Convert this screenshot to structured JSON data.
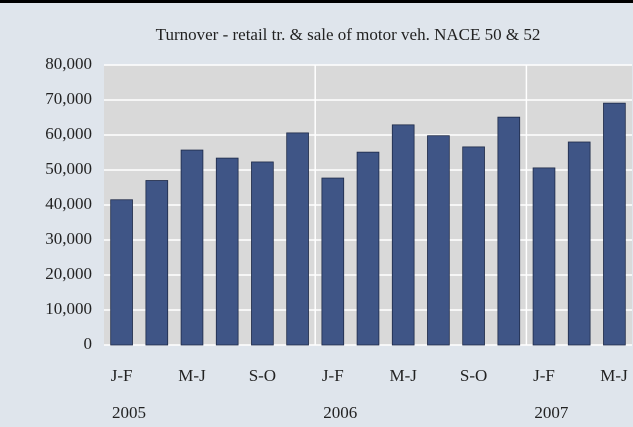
{
  "chart_data": {
    "type": "bar",
    "title": "Turnover - retail tr. & sale of motor veh. NACE 50 & 52",
    "categories": [
      "J-F",
      null,
      "M-J",
      null,
      "S-O",
      null,
      "J-F",
      null,
      "M-J",
      null,
      "S-O",
      null,
      "J-F",
      null,
      "M-J"
    ],
    "year_labels": [
      "2005",
      null,
      null,
      null,
      null,
      null,
      "2006",
      null,
      null,
      null,
      null,
      null,
      "2007",
      null,
      null
    ],
    "values": [
      41500,
      47000,
      55700,
      53400,
      52300,
      60600,
      47700,
      55100,
      62900,
      59800,
      56600,
      65100,
      50600,
      58000,
      69100
    ],
    "color": "#3f5586",
    "ylim": [
      0,
      80000
    ],
    "yticks": [
      0,
      {
        "value": 10000,
        "label": "10,000"
      },
      {
        "value": 20000,
        "label": "20,000"
      },
      {
        "value": 30000,
        "label": "30,000"
      },
      {
        "value": 40000,
        "label": "40,000"
      },
      {
        "value": 50000,
        "label": "50,000"
      },
      {
        "value": 60000,
        "label": "60,000"
      },
      {
        "value": 70000,
        "label": "70,000"
      },
      {
        "value": 80000,
        "label": "80,000"
      }
    ],
    "grid": true
  }
}
